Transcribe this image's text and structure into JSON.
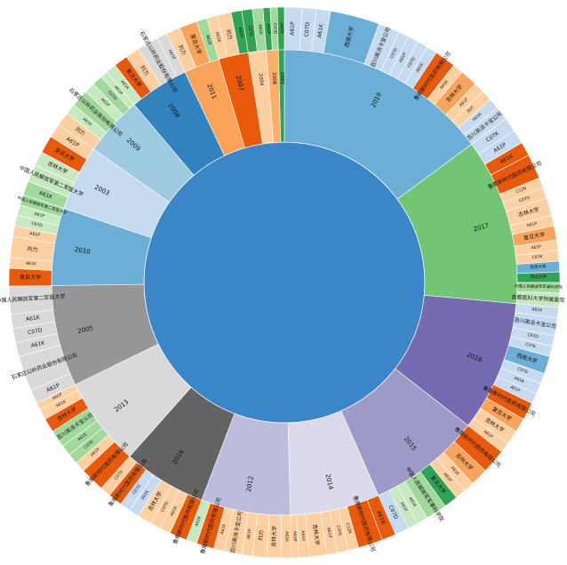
{
  "chart_data": {
    "type": "sunburst",
    "title": "",
    "levels": [
      "year",
      "applicant / IPC"
    ],
    "colors": {
      "root": "#3a86c8",
      "orange": "#e8590c",
      "light_orange": "#f9a35b",
      "peach": "#fdd0a2",
      "green": "#31a354",
      "light_green": "#a1d99b",
      "pale_green": "#c7e9c0",
      "blue": "#6baed6",
      "light_blue": "#c6dbef",
      "purple": "#756bb1",
      "lavender": "#9e9ac8",
      "light_lavender": "#bcbddc",
      "pale_lavender": "#dadaeb",
      "gray": "#969696",
      "light_gray": "#d9d9d9",
      "dark_gray": "#636363"
    },
    "years": [
      {
        "label": "2019",
        "value": 72,
        "color": "#6baed6",
        "children": [
          {
            "label": "A61P",
            "value": 5,
            "color": "#c6dbef"
          },
          {
            "label": "C07D",
            "value": 4,
            "color": "#c6dbef"
          },
          {
            "label": "A61K",
            "value": 4,
            "color": "#c6dbef"
          },
          {
            "label": "西南大学",
            "value": 14,
            "color": "#6baed6"
          },
          {
            "label": "百川英派卡宝公司",
            "value": 6,
            "color": "#c6dbef"
          },
          {
            "label": "C07D",
            "value": 3,
            "color": "#c6dbef"
          },
          {
            "label": "A61P",
            "value": 3,
            "color": "#c6dbef"
          },
          {
            "label": "C07D",
            "value": 3,
            "color": "#c6dbef"
          },
          {
            "label": "A61K",
            "value": 3,
            "color": "#c6dbef"
          },
          {
            "label": "鲁南新时代医药有限公司",
            "value": 6,
            "color": "#e8590c"
          },
          {
            "label": "A61K",
            "value": 3,
            "color": "#fdd0a2"
          },
          {
            "label": "吉林大学",
            "value": 5,
            "color": "#f9a35b"
          },
          {
            "label": "A61P",
            "value": 3,
            "color": "#fdd0a2"
          },
          {
            "label": "刘力",
            "value": 3,
            "color": "#fdd0a2"
          },
          {
            "label": "A61K",
            "value": 3,
            "color": "#c6dbef"
          },
          {
            "label": "百川英派卡宝公司",
            "value": 4,
            "color": "#c6dbef"
          }
        ]
      },
      {
        "label": "2017",
        "value": 56,
        "color": "#74c476",
        "children": [
          {
            "label": "C07K",
            "value": 4,
            "color": "#c6dbef"
          },
          {
            "label": "A61P",
            "value": 4,
            "color": "#c6dbef"
          },
          {
            "label": "A61K",
            "value": 4,
            "color": "#e8590c"
          },
          {
            "label": "鲁南新时代医药有限公司",
            "value": 7,
            "color": "#e8590c"
          },
          {
            "label": "C12N",
            "value": 3,
            "color": "#fdd0a2"
          },
          {
            "label": "C07D",
            "value": 3,
            "color": "#fdd0a2"
          },
          {
            "label": "吉林大学",
            "value": 5,
            "color": "#fdd0a2"
          },
          {
            "label": "A61P",
            "value": 3,
            "color": "#fdd0a2"
          },
          {
            "label": "复旦大学",
            "value": 4,
            "color": "#f9a35b"
          },
          {
            "label": "A61P",
            "value": 3,
            "color": "#fdd0a2"
          },
          {
            "label": "C07K",
            "value": 3,
            "color": "#fdd0a2"
          },
          {
            "label": "西南大学",
            "value": 3,
            "color": "#6baed6"
          },
          {
            "label": "西北大学",
            "value": 3,
            "color": "#31a354"
          },
          {
            "label": "中国人民解放军军事科学院",
            "value": 3,
            "color": "#a1d99b"
          },
          {
            "label": "首都医科大学附属医院",
            "value": 4,
            "color": "#c7e9c0"
          }
        ]
      },
      {
        "label": "2018",
        "value": 44,
        "color": "#756bb1",
        "children": [
          {
            "label": "A61K",
            "value": 3,
            "color": "#c6dbef"
          },
          {
            "label": "百川英派卡宝公司",
            "value": 5,
            "color": "#c6dbef"
          },
          {
            "label": "C07D",
            "value": 3,
            "color": "#c6dbef"
          },
          {
            "label": "C07K",
            "value": 3,
            "color": "#c6dbef"
          },
          {
            "label": "西南大学",
            "value": 5,
            "color": "#6baed6"
          },
          {
            "label": "C07D",
            "value": 3,
            "color": "#c6dbef"
          },
          {
            "label": "A61K",
            "value": 3,
            "color": "#c6dbef"
          },
          {
            "label": "A61P",
            "value": 3,
            "color": "#c6dbef"
          },
          {
            "label": "鲁南新时代医药有限公司",
            "value": 5,
            "color": "#e8590c"
          },
          {
            "label": "复旦大学",
            "value": 4,
            "color": "#f9a35b"
          },
          {
            "label": "吉林大学",
            "value": 4,
            "color": "#fdd0a2"
          },
          {
            "label": "A61P",
            "value": 3,
            "color": "#fdd0a2"
          }
        ]
      },
      {
        "label": "2015",
        "value": 38,
        "color": "#9e9ac8",
        "children": [
          {
            "label": "鲁南新时代医药有限公司",
            "value": 7,
            "color": "#e8590c"
          },
          {
            "label": "吉林大学",
            "value": 5,
            "color": "#f9a35b"
          },
          {
            "label": "A61K",
            "value": 3,
            "color": "#fdd0a2"
          },
          {
            "label": "A61P",
            "value": 3,
            "color": "#fdd0a2"
          },
          {
            "label": "复旦大学",
            "value": 4,
            "color": "#31a354"
          },
          {
            "label": "中国人民解放军军事科学院",
            "value": 6,
            "color": "#a1d99b"
          },
          {
            "label": "A61K",
            "value": 3,
            "color": "#c7e9c0"
          },
          {
            "label": "A61P",
            "value": 3,
            "color": "#c7e9c0"
          },
          {
            "label": "C07D",
            "value": 4,
            "color": "#c6dbef"
          }
        ]
      },
      {
        "label": "2014",
        "value": 30,
        "color": "#dadaeb",
        "children": [
          {
            "label": "A61K",
            "value": 4,
            "color": "#e8590c"
          },
          {
            "label": "鲁南新时代医药有限公司",
            "value": 7,
            "color": "#e8590c"
          },
          {
            "label": "C12N",
            "value": 3,
            "color": "#fdd0a2"
          },
          {
            "label": "C07K",
            "value": 3,
            "color": "#fdd0a2"
          },
          {
            "label": "A61P",
            "value": 3,
            "color": "#fdd0a2"
          },
          {
            "label": "吉林大学",
            "value": 5,
            "color": "#fdd0a2"
          },
          {
            "label": "A61K",
            "value": 3,
            "color": "#fdd0a2"
          },
          {
            "label": "A61P",
            "value": 2,
            "color": "#fdd0a2"
          }
        ]
      },
      {
        "label": "2012",
        "value": 30,
        "color": "#bcbddc",
        "children": [
          {
            "label": "A61K",
            "value": 3,
            "color": "#fdd0a2"
          },
          {
            "label": "吉林大学",
            "value": 4,
            "color": "#fdd0a2"
          },
          {
            "label": "刘力",
            "value": 4,
            "color": "#fdd0a2"
          },
          {
            "label": "A61P",
            "value": 3,
            "color": "#fdd0a2"
          },
          {
            "label": "百川英派卡宝公司",
            "value": 5,
            "color": "#fdd0a2"
          },
          {
            "label": "A61K",
            "value": 3,
            "color": "#fdd0a2"
          },
          {
            "label": "鲁南新时代医药有限公司",
            "value": 5,
            "color": "#e8590c"
          },
          {
            "label": "A61K",
            "value": 3,
            "color": "#c7e9c0"
          }
        ]
      },
      {
        "label": "2016",
        "value": 28,
        "color": "#636363",
        "children": [
          {
            "label": "鲁南新时代医药有限公司",
            "value": 5,
            "color": "#e8590c"
          },
          {
            "label": "A61K",
            "value": 3,
            "color": "#fdd0a2"
          },
          {
            "label": "C07D",
            "value": 3,
            "color": "#fdd0a2"
          },
          {
            "label": "吉林大学",
            "value": 4,
            "color": "#fdd0a2"
          },
          {
            "label": "A61K",
            "value": 3,
            "color": "#c6dbef"
          },
          {
            "label": "C07D",
            "value": 3,
            "color": "#c6dbef"
          },
          {
            "label": "鲁南新时代医药有限公司",
            "value": 4,
            "color": "#e8590c"
          },
          {
            "label": "C07D",
            "value": 3,
            "color": "#fdd0a2"
          }
        ]
      },
      {
        "label": "2013",
        "value": 30,
        "color": "#d9d9d9",
        "children": [
          {
            "label": "鲁南新时代医药有限公司",
            "value": 7,
            "color": "#e8590c"
          },
          {
            "label": "A61P",
            "value": 3,
            "color": "#fdd0a2"
          },
          {
            "label": "C07D",
            "value": 3,
            "color": "#a1d99b"
          },
          {
            "label": "A61K",
            "value": 3,
            "color": "#a1d99b"
          },
          {
            "label": "百川英派卡宝公司",
            "value": 5,
            "color": "#a1d99b"
          },
          {
            "label": "吉林大学",
            "value": 4,
            "color": "#e8590c"
          },
          {
            "label": "A61K",
            "value": 3,
            "color": "#fdd0a2"
          },
          {
            "label": "A61P",
            "value": 2,
            "color": "#fdd0a2"
          }
        ]
      },
      {
        "label": "2005",
        "value": 34,
        "color": "#969696",
        "children": [
          {
            "label": "A61P",
            "value": 4,
            "color": "#d9d9d9"
          },
          {
            "label": "石家庄以岭药业股份有限公司",
            "value": 10,
            "color": "#d9d9d9"
          },
          {
            "label": "A61K",
            "value": 4,
            "color": "#d9d9d9"
          },
          {
            "label": "C07D",
            "value": 4,
            "color": "#d9d9d9"
          },
          {
            "label": "A61K",
            "value": 4,
            "color": "#d9d9d9"
          },
          {
            "label": "中国人民解放军第二军医大学",
            "value": 8,
            "color": "#d9d9d9"
          }
        ]
      },
      {
        "label": "2010",
        "value": 26,
        "color": "#6baed6",
        "children": [
          {
            "label": "复旦大学",
            "value": 5,
            "color": "#e8590c"
          },
          {
            "label": "A61K",
            "value": 3,
            "color": "#fdd0a2"
          },
          {
            "label": "刘力",
            "value": 6,
            "color": "#fdd0a2"
          },
          {
            "label": "A61P",
            "value": 3,
            "color": "#fdd0a2"
          },
          {
            "label": "C07D",
            "value": 3,
            "color": "#c7e9c0"
          },
          {
            "label": "A61P",
            "value": 3,
            "color": "#c7e9c0"
          },
          {
            "label": "中国人民解放军第二军医大学",
            "value": 3,
            "color": "#a1d99b"
          }
        ]
      },
      {
        "label": "2003",
        "value": 22,
        "color": "#c6dbef",
        "children": [
          {
            "label": "A61K",
            "value": 4,
            "color": "#a1d99b"
          },
          {
            "label": "中国人民解放军第二军医大学",
            "value": 5,
            "color": "#c7e9c0"
          },
          {
            "label": "吉林大学",
            "value": 4,
            "color": "#c7e9c0"
          },
          {
            "label": "复旦大学",
            "value": 5,
            "color": "#e8590c"
          },
          {
            "label": "A61P",
            "value": 4,
            "color": "#fdd0a2"
          }
        ]
      },
      {
        "label": "2009",
        "value": 20,
        "color": "#9ecae1",
        "children": [
          {
            "label": "刘力",
            "value": 4,
            "color": "#fdd0a2"
          },
          {
            "label": "A61K",
            "value": 3,
            "color": "#c7e9c0"
          },
          {
            "label": "石家庄以岭药业股份有限公司",
            "value": 5,
            "color": "#a1d99b"
          },
          {
            "label": "A61P",
            "value": 3,
            "color": "#c7e9c0"
          },
          {
            "label": "C07D",
            "value": 3,
            "color": "#a1d99b"
          },
          {
            "label": "A61K",
            "value": 2,
            "color": "#c7e9c0"
          }
        ]
      },
      {
        "label": "2008",
        "value": 20,
        "color": "#3182bd",
        "children": [
          {
            "label": "A61K",
            "value": 3,
            "color": "#c7e9c0"
          },
          {
            "label": "复旦大学",
            "value": 4,
            "color": "#e8590c"
          },
          {
            "label": "刘力",
            "value": 4,
            "color": "#fdd0a2"
          },
          {
            "label": "石家庄以岭药业股份有限公司",
            "value": 6,
            "color": "#d9d9d9"
          },
          {
            "label": "A61P",
            "value": 3,
            "color": "#d9d9d9"
          }
        ]
      },
      {
        "label": "2011",
        "value": 12,
        "color": "#f9a35b",
        "children": [
          {
            "label": "刘力",
            "value": 4,
            "color": "#fdd0a2"
          },
          {
            "label": "复旦大学",
            "value": 5,
            "color": "#f9a35b"
          },
          {
            "label": "A61K",
            "value": 3,
            "color": "#a1d99b"
          }
        ]
      },
      {
        "label": "2007",
        "value": 10,
        "color": "#e8590c",
        "children": [
          {
            "label": "A61K",
            "value": 3,
            "color": "#fdd0a2"
          },
          {
            "label": "刘力",
            "value": 4,
            "color": "#fdd0a2"
          },
          {
            "label": "A61P",
            "value": 3,
            "color": "#31a354"
          }
        ]
      },
      {
        "label": "2004",
        "value": 6,
        "color": "#fdd0a2",
        "children": [
          {
            "label": "C07D",
            "value": 3,
            "color": "#31a354"
          },
          {
            "label": "A61K",
            "value": 3,
            "color": "#a1d99b"
          }
        ]
      },
      {
        "label": "2006",
        "value": 4,
        "color": "#fdae6b",
        "children": [
          {
            "label": "A61P",
            "value": 2,
            "color": "#31a354"
          },
          {
            "label": "C07D",
            "value": 2,
            "color": "#a1d99b"
          }
        ]
      },
      {
        "label": "2002",
        "value": 2,
        "color": "#31a354",
        "children": [
          {
            "label": "A61K",
            "value": 2,
            "color": "#31a354"
          }
        ]
      }
    ]
  }
}
